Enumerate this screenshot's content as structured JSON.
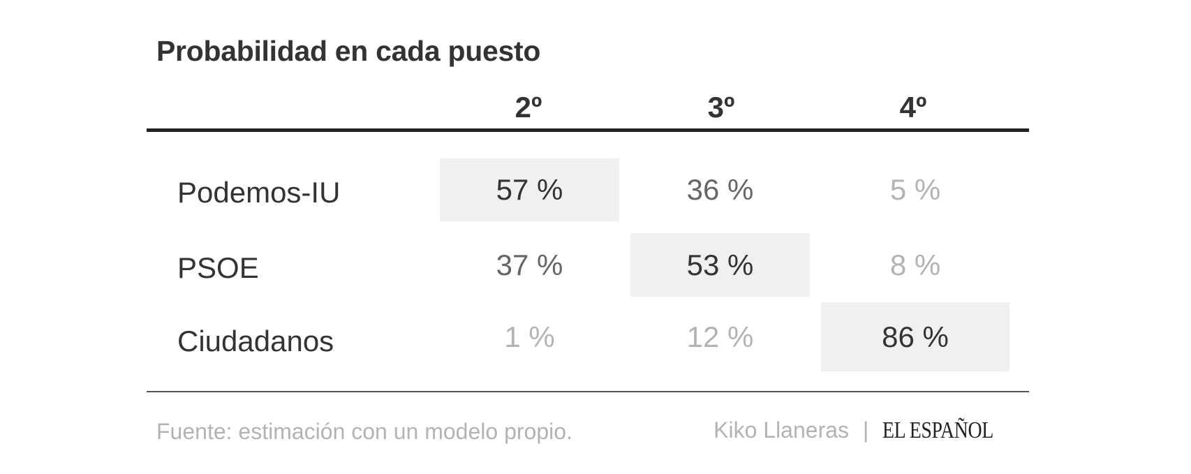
{
  "chart_data": {
    "type": "table",
    "title": "Probabilidad en cada puesto",
    "columns": [
      "2º",
      "3º",
      "4º"
    ],
    "rows": [
      {
        "label": "Podemos-IU",
        "cells": [
          "57 %",
          "36 %",
          "5 %"
        ],
        "values": [
          57,
          36,
          5
        ],
        "highlight_index": 0
      },
      {
        "label": "PSOE",
        "cells": [
          "37 %",
          "53 %",
          "8 %"
        ],
        "values": [
          37,
          53,
          8
        ],
        "highlight_index": 1
      },
      {
        "label": "Ciudadanos",
        "cells": [
          "1 %",
          "12 %",
          "86 %"
        ],
        "values": [
          1,
          12,
          86
        ],
        "highlight_index": 2
      }
    ]
  },
  "footer": {
    "source": "Fuente: estimación con un modelo propio.",
    "author": "Kiko Llaneras",
    "separator": "|",
    "brand": "EL ESPAÑOL"
  },
  "colors": {
    "highlight_bg": "#f0f0f0",
    "text_dark": "#333333",
    "text_mid": "#666666",
    "text_light": "#b3b3b3"
  }
}
